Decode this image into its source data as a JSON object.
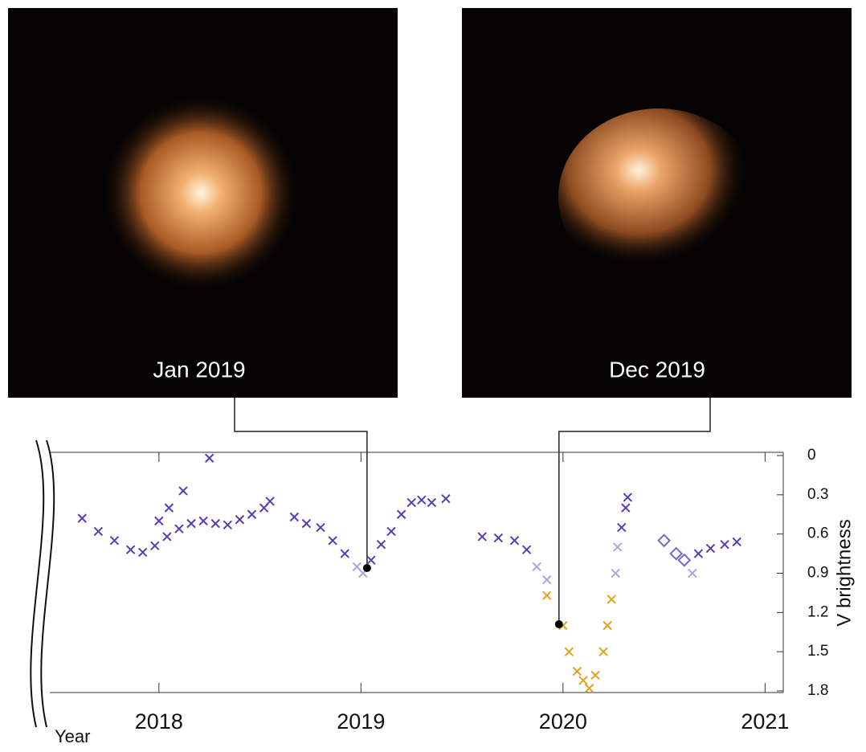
{
  "images": [
    {
      "label": "Jan 2019"
    },
    {
      "label": "Dec 2019"
    }
  ],
  "chart_data": {
    "type": "scatter",
    "x_label": "Year",
    "y_label": "V brightness",
    "xlim": [
      2017.46,
      2021.09
    ],
    "ylim": [
      1.8,
      0
    ],
    "xticks": [
      2018,
      2019,
      2020,
      2021
    ],
    "yticks": [
      0,
      0.3,
      0.6,
      0.9,
      1.2,
      1.5,
      1.8
    ],
    "series": [
      {
        "color": "#5a3cb4",
        "marker": "x",
        "x": [
          2017.62,
          2017.7,
          2017.78,
          2017.86,
          2017.92,
          2017.98,
          2018.0,
          2018.04,
          2018.05,
          2018.1,
          2018.12,
          2018.16,
          2018.22,
          2018.25,
          2018.28,
          2018.34,
          2018.4,
          2018.46,
          2018.52,
          2018.55,
          2018.67,
          2018.73,
          2018.8,
          2018.86,
          2018.92,
          2019.05,
          2019.1,
          2019.15,
          2019.2,
          2019.25,
          2019.3,
          2019.35,
          2019.42,
          2019.6,
          2019.68,
          2019.76,
          2019.82,
          2020.29,
          2020.31,
          2020.32,
          2020.67,
          2020.73,
          2020.8,
          2020.86
        ],
        "values": [
          0.48,
          0.58,
          0.65,
          0.72,
          0.74,
          0.69,
          0.5,
          0.62,
          0.4,
          0.56,
          0.27,
          0.52,
          0.5,
          0.02,
          0.52,
          0.53,
          0.49,
          0.45,
          0.4,
          0.35,
          0.47,
          0.52,
          0.55,
          0.65,
          0.75,
          0.8,
          0.68,
          0.58,
          0.45,
          0.36,
          0.34,
          0.36,
          0.33,
          0.62,
          0.63,
          0.65,
          0.72,
          0.55,
          0.4,
          0.32,
          0.75,
          0.71,
          0.68,
          0.66
        ]
      },
      {
        "color": "#aea4e2",
        "marker": "x",
        "x": [
          2018.98,
          2019.01,
          2019.87,
          2019.92,
          2020.26,
          2020.27,
          2020.64
        ],
        "values": [
          0.85,
          0.9,
          0.85,
          0.95,
          0.9,
          0.7,
          0.9
        ]
      },
      {
        "color": "#e2a21c",
        "marker": "x",
        "x": [
          2019.92,
          2020.0,
          2020.03,
          2020.07,
          2020.1,
          2020.13,
          2020.16,
          2020.2,
          2020.22,
          2020.24
        ],
        "values": [
          1.07,
          1.3,
          1.5,
          1.65,
          1.72,
          1.78,
          1.68,
          1.5,
          1.3,
          1.1
        ]
      },
      {
        "color": "#7566c8",
        "marker": "diamond",
        "x": [
          2020.5,
          2020.56,
          2020.6
        ],
        "values": [
          0.65,
          0.75,
          0.8
        ]
      },
      {
        "color": "#000000",
        "marker": "dot",
        "x": [
          2019.03,
          2019.98
        ],
        "values": [
          0.86,
          1.29
        ]
      }
    ]
  }
}
